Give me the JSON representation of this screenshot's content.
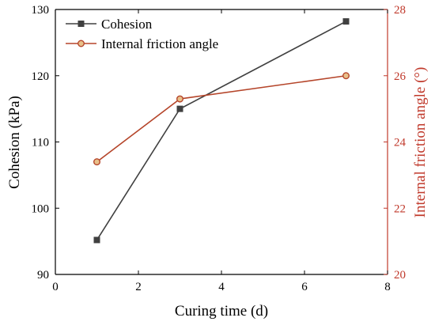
{
  "chart_data": {
    "type": "line",
    "xlabel": "Curing time (d)",
    "ylabel": "Cohesion (kPa)",
    "y2label": "Internal friction angle (°)",
    "xlim": [
      0,
      8
    ],
    "ylim": [
      90,
      130
    ],
    "y2lim": [
      20,
      28
    ],
    "xticks": [
      0,
      2,
      4,
      6,
      8
    ],
    "yticks": [
      90,
      100,
      110,
      120,
      130
    ],
    "y2ticks": [
      20,
      22,
      24,
      26,
      28
    ],
    "grid": false,
    "legend_position": "top-left",
    "colors": {
      "cohesion": "#404040",
      "friction": "#b5452a",
      "right_axis": "#c0392b"
    },
    "series": [
      {
        "name": "Cohesion",
        "axis": "left",
        "marker": "square",
        "x": [
          1,
          3,
          7
        ],
        "values": [
          95.2,
          115.0,
          128.2
        ]
      },
      {
        "name": "Internal friction angle",
        "axis": "right",
        "marker": "circle",
        "x": [
          1,
          3,
          7
        ],
        "values": [
          23.4,
          25.3,
          26.0
        ]
      }
    ]
  }
}
